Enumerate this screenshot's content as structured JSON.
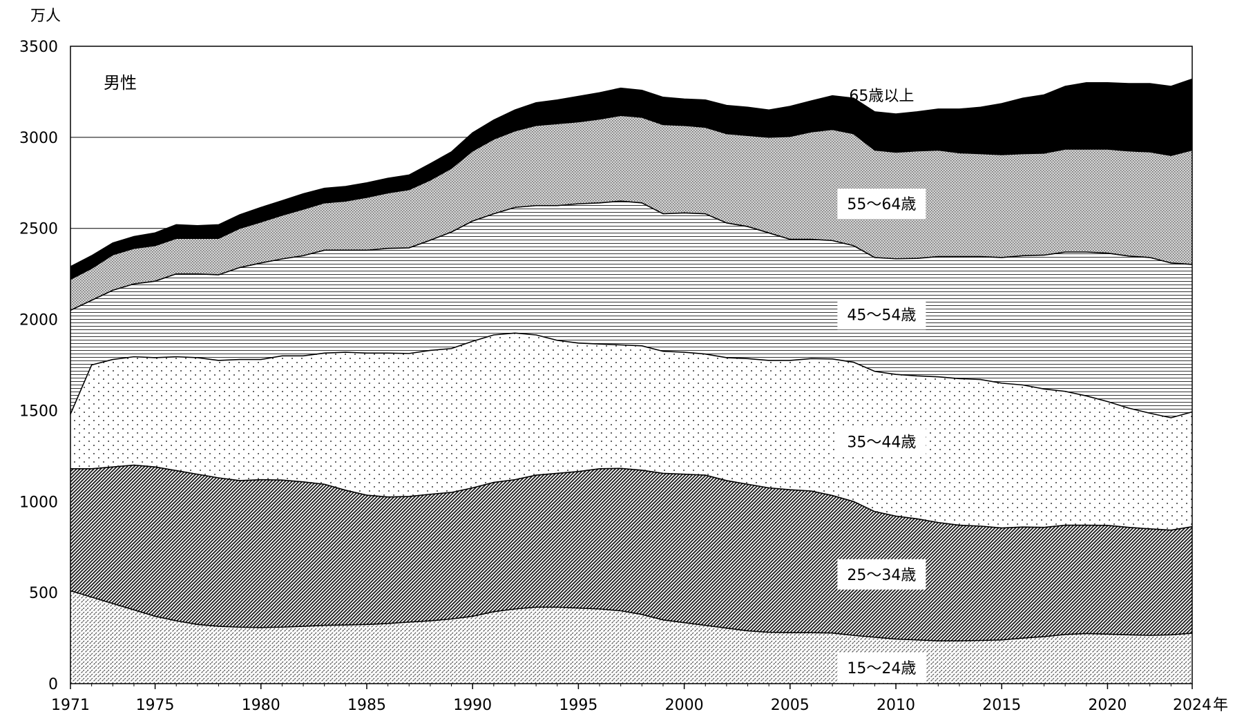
{
  "chart_data": {
    "type": "area",
    "stacked": true,
    "title": "",
    "panel_label": "男性",
    "ylabel": "万人",
    "xlabel": "年",
    "ylim": [
      0,
      3500
    ],
    "y_ticks": [
      0,
      500,
      1000,
      1500,
      2000,
      2500,
      3000,
      3500
    ],
    "x_ticks": [
      1971,
      1975,
      1980,
      1985,
      1990,
      1995,
      2000,
      2005,
      2010,
      2015,
      2020,
      2024
    ],
    "x_tick_labels": [
      "1971",
      "1975",
      "1980",
      "1985",
      "1990",
      "1995",
      "2000",
      "2005",
      "2010",
      "2015",
      "2020",
      "2024"
    ],
    "x_unit_label": "年",
    "grid": "horizontal",
    "x": [
      1971,
      1972,
      1973,
      1974,
      1975,
      1976,
      1977,
      1978,
      1979,
      1980,
      1981,
      1982,
      1983,
      1984,
      1985,
      1986,
      1987,
      1988,
      1989,
      1990,
      1991,
      1992,
      1993,
      1994,
      1995,
      1996,
      1997,
      1998,
      1999,
      2000,
      2001,
      2002,
      2003,
      2004,
      2005,
      2006,
      2007,
      2008,
      2009,
      2010,
      2011,
      2012,
      2013,
      2014,
      2015,
      2016,
      2017,
      2018,
      2019,
      2020,
      2021,
      2022,
      2023,
      2024
    ],
    "series": [
      {
        "name": "15～24歳",
        "label": "15～24歳",
        "pattern": "fine-hatch",
        "values": [
          510,
          475,
          440,
          405,
          370,
          345,
          325,
          315,
          310,
          308,
          310,
          315,
          320,
          322,
          325,
          330,
          338,
          345,
          355,
          370,
          395,
          410,
          420,
          420,
          415,
          410,
          400,
          380,
          350,
          335,
          320,
          305,
          290,
          282,
          280,
          280,
          278,
          265,
          255,
          245,
          240,
          235,
          235,
          237,
          240,
          250,
          258,
          270,
          275,
          272,
          268,
          265,
          268,
          277
        ]
      },
      {
        "name": "25～34歳",
        "label": "25～34歳",
        "pattern": "dense-hatch",
        "values": [
          670,
          705,
          750,
          795,
          820,
          825,
          825,
          815,
          805,
          812,
          808,
          793,
          775,
          740,
          710,
          695,
          690,
          695,
          695,
          705,
          710,
          710,
          725,
          735,
          750,
          770,
          782,
          792,
          805,
          815,
          825,
          810,
          805,
          793,
          785,
          778,
          755,
          735,
          690,
          675,
          665,
          650,
          635,
          628,
          615,
          610,
          600,
          600,
          595,
          597,
          590,
          585,
          575,
          585
        ]
      },
      {
        "name": "35～44歳",
        "label": "35～44歳",
        "pattern": "dots",
        "values": [
          300,
          570,
          590,
          595,
          600,
          625,
          640,
          645,
          665,
          660,
          682,
          692,
          720,
          758,
          780,
          790,
          785,
          790,
          790,
          805,
          810,
          805,
          770,
          730,
          705,
          685,
          678,
          683,
          670,
          670,
          665,
          675,
          690,
          700,
          710,
          727,
          750,
          765,
          770,
          778,
          785,
          800,
          805,
          805,
          795,
          780,
          760,
          735,
          710,
          680,
          655,
          635,
          617,
          630
        ]
      },
      {
        "name": "45～54歳",
        "label": "45～54歳",
        "pattern": "lines",
        "values": [
          570,
          355,
          380,
          400,
          420,
          455,
          460,
          470,
          505,
          530,
          532,
          550,
          565,
          560,
          565,
          575,
          580,
          605,
          640,
          660,
          665,
          690,
          710,
          740,
          765,
          775,
          790,
          785,
          755,
          765,
          770,
          740,
          725,
          700,
          665,
          655,
          650,
          640,
          625,
          635,
          645,
          660,
          670,
          675,
          690,
          710,
          735,
          765,
          790,
          815,
          835,
          855,
          850,
          810
        ]
      },
      {
        "name": "55～64歳",
        "label": "55～64歳",
        "pattern": "fine-dots",
        "values": [
          170,
          175,
          195,
          195,
          195,
          195,
          195,
          200,
          215,
          225,
          240,
          255,
          260,
          270,
          290,
          305,
          320,
          330,
          350,
          385,
          410,
          420,
          440,
          450,
          450,
          460,
          470,
          470,
          490,
          480,
          475,
          490,
          500,
          525,
          565,
          590,
          610,
          615,
          590,
          585,
          590,
          585,
          570,
          565,
          565,
          560,
          560,
          565,
          565,
          571,
          577,
          580,
          590,
          628
        ]
      },
      {
        "name": "65歳以上",
        "label": "65歳以上",
        "pattern": "solid",
        "values": [
          70,
          70,
          65,
          65,
          70,
          75,
          70,
          75,
          75,
          80,
          80,
          85,
          80,
          80,
          80,
          80,
          80,
          90,
          90,
          100,
          105,
          115,
          125,
          130,
          140,
          145,
          150,
          148,
          150,
          145,
          150,
          155,
          155,
          150,
          165,
          170,
          185,
          195,
          210,
          210,
          215,
          225,
          240,
          255,
          280,
          305,
          320,
          345,
          365,
          365,
          370,
          375,
          380,
          390
        ]
      }
    ]
  }
}
